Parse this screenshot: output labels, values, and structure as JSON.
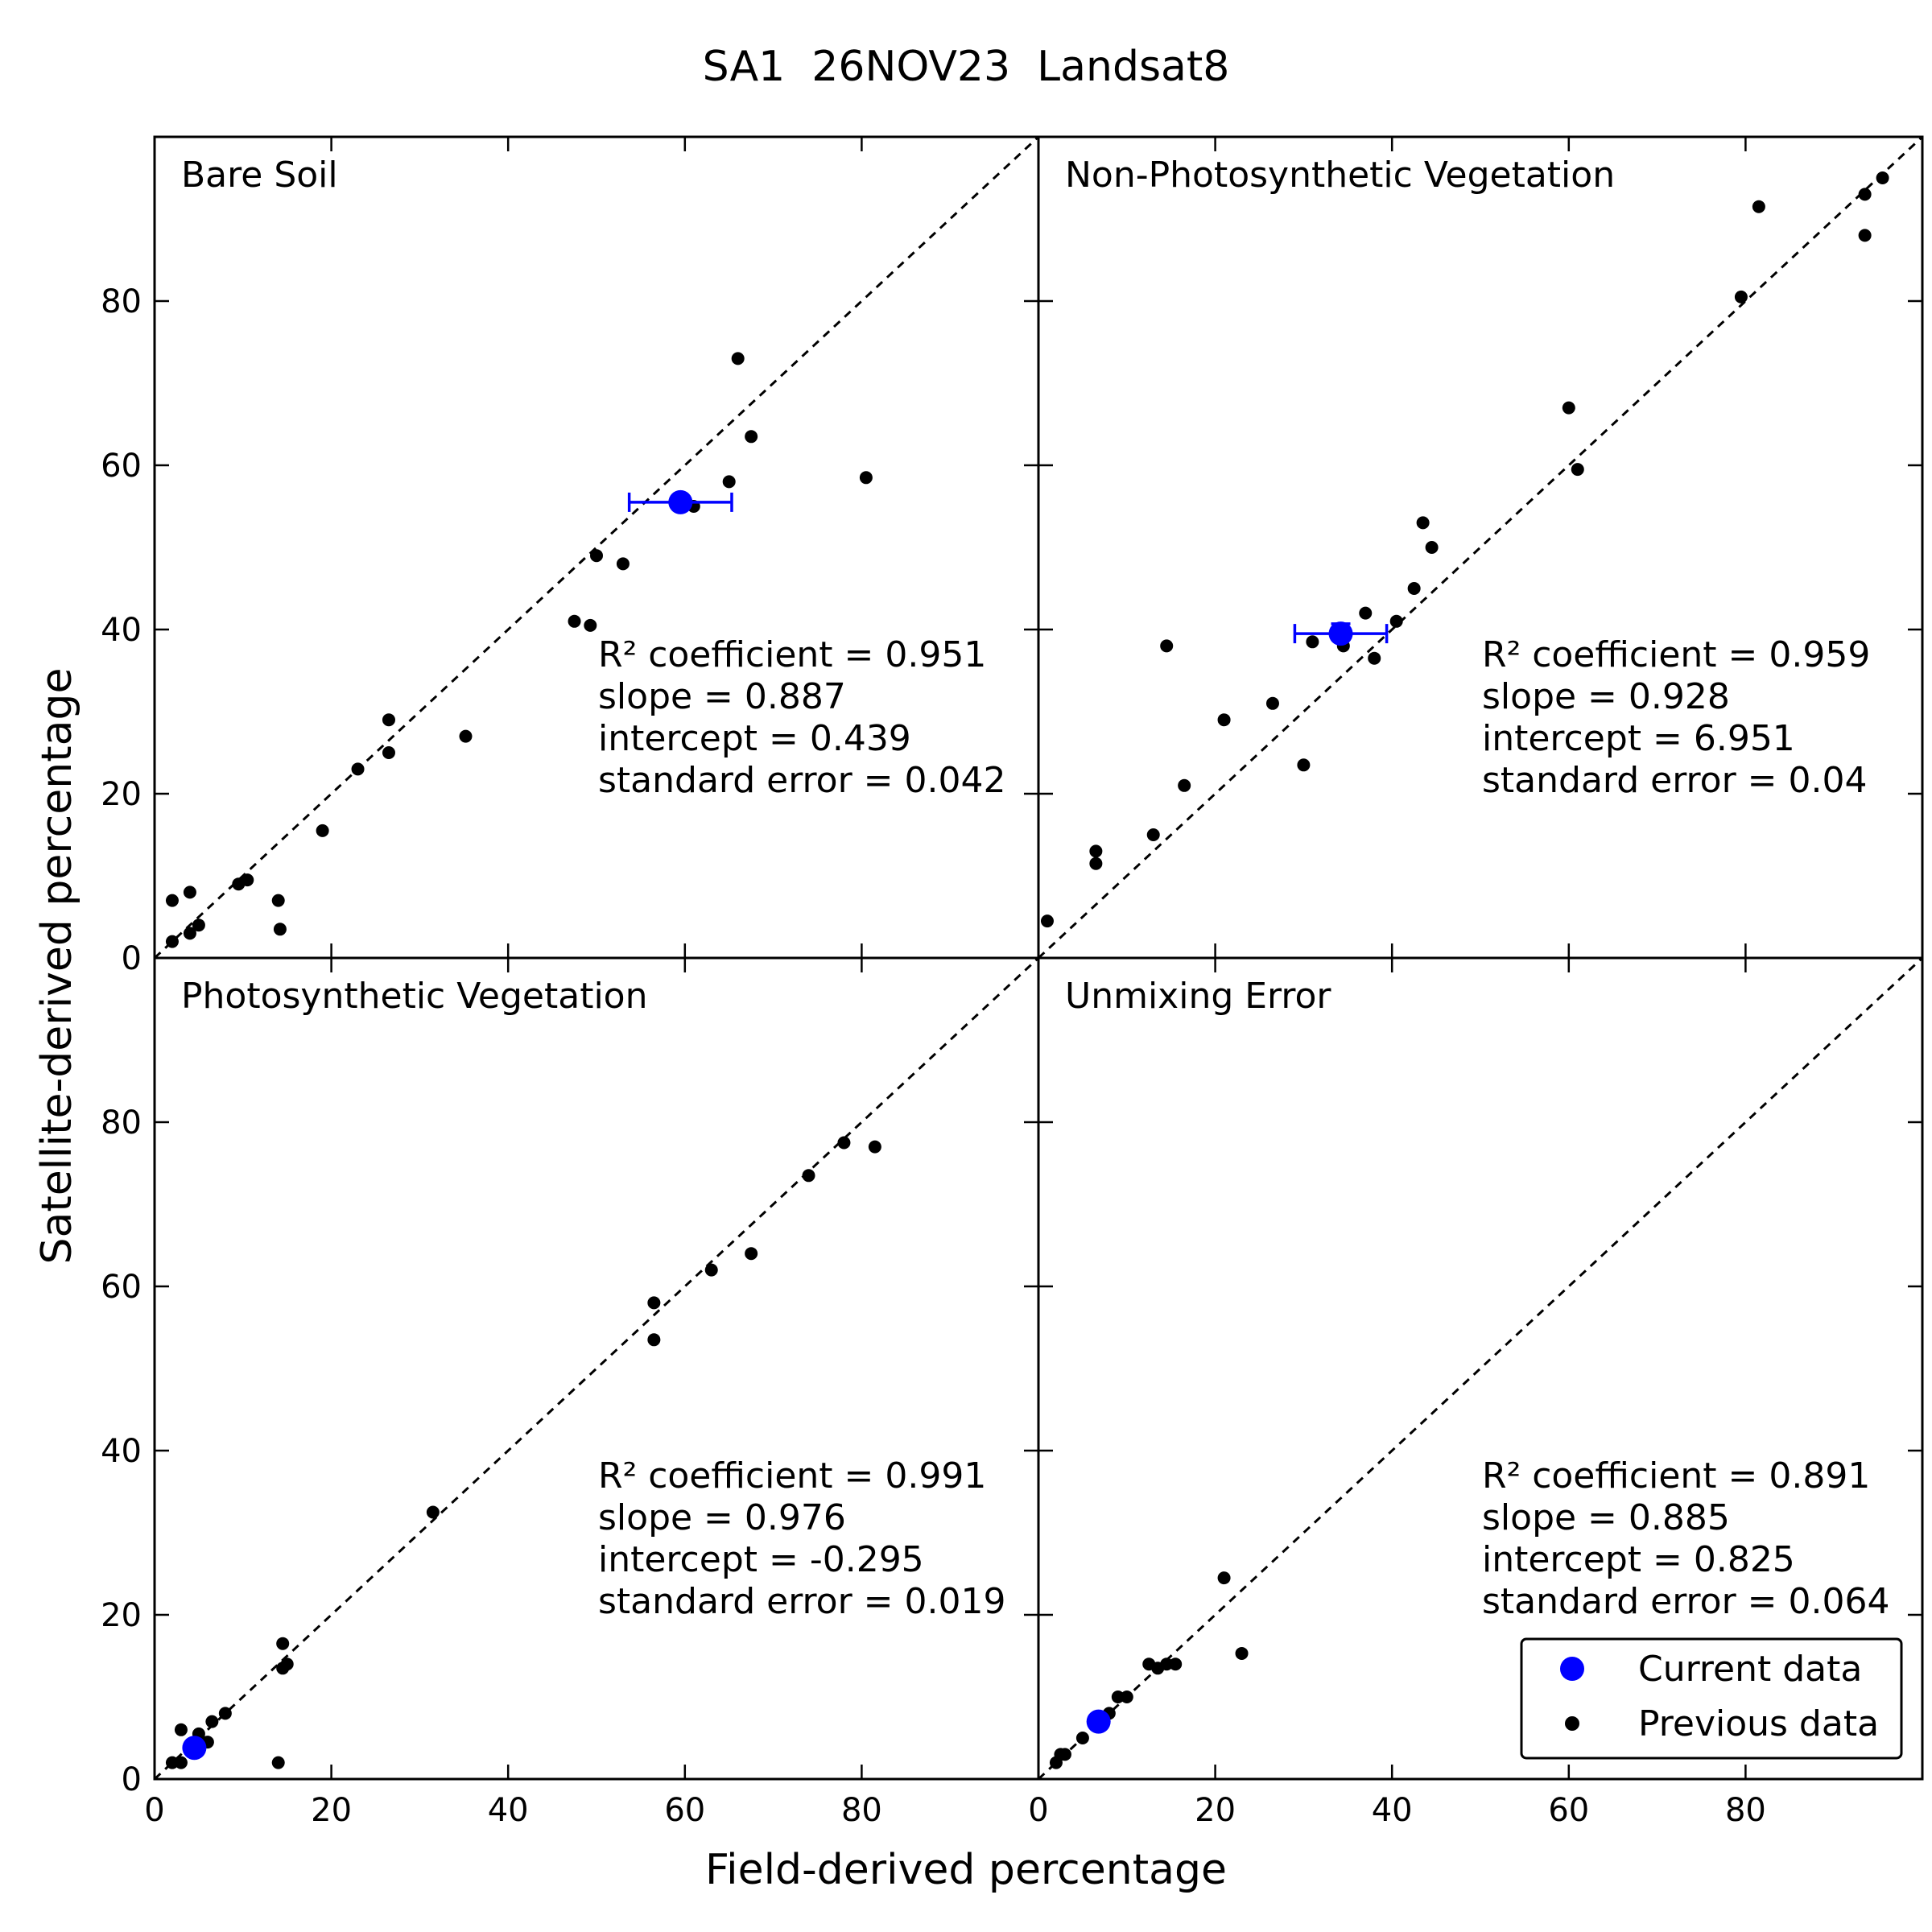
{
  "figure_title": "SA1  26NOV23  Landsat8",
  "xlabel": "Field-derived percentage",
  "ylabel": "Satellite-derived percentage",
  "legend": {
    "current": "Current data",
    "previous": "Previous data",
    "placement": "lower-right of Unmixing Error panel"
  },
  "colors": {
    "current": "#0000ff",
    "previous": "#000000",
    "reference_line": "#000000"
  },
  "chart_data": [
    {
      "type": "scatter",
      "title": "Bare Soil",
      "xlim": [
        0,
        100
      ],
      "ylim": [
        0,
        100
      ],
      "x_ticks": [
        0,
        20,
        40,
        60,
        80
      ],
      "y_ticks": [
        0,
        20,
        40,
        60,
        80
      ],
      "reference_line": "1:1",
      "stats": {
        "r2": "R² coefficient = 0.951",
        "slope": "slope = 0.887",
        "intercept": "intercept = 0.439",
        "stderr": "standard error = 0.042"
      },
      "series": [
        {
          "name": "Previous data",
          "points": [
            [
              2,
              2
            ],
            [
              2,
              7
            ],
            [
              4,
              3
            ],
            [
              4,
              8
            ],
            [
              5,
              4
            ],
            [
              9.5,
              9
            ],
            [
              10.5,
              9.5
            ],
            [
              14,
              7
            ],
            [
              14.2,
              3.5
            ],
            [
              19,
              15.5
            ],
            [
              23,
              23
            ],
            [
              26.5,
              29
            ],
            [
              26.5,
              25
            ],
            [
              35.2,
              27
            ],
            [
              47.5,
              41
            ],
            [
              49.3,
              40.5
            ],
            [
              50,
              49
            ],
            [
              53,
              48
            ],
            [
              61,
              55
            ],
            [
              65,
              58
            ],
            [
              66,
              73
            ],
            [
              67.5,
              63.5
            ],
            [
              80.5,
              58.5
            ]
          ]
        },
        {
          "name": "Current data",
          "points": [
            [
              59.5,
              55.5
            ]
          ],
          "xerr": [
            [
              5.8,
              5.8
            ]
          ]
        }
      ]
    },
    {
      "type": "scatter",
      "title": "Non-Photosynthetic Vegetation",
      "xlim": [
        0,
        100
      ],
      "ylim": [
        0,
        100
      ],
      "x_ticks": [
        0,
        20,
        40,
        60,
        80
      ],
      "y_ticks": [
        0,
        20,
        40,
        60,
        80
      ],
      "reference_line": "1:1",
      "stats": {
        "r2": "R² coefficient = 0.959",
        "slope": "slope = 0.928",
        "intercept": "intercept = 6.951",
        "stderr": "standard error = 0.04"
      },
      "series": [
        {
          "name": "Previous data",
          "points": [
            [
              1,
              4.5
            ],
            [
              6.5,
              11.5
            ],
            [
              6.5,
              13
            ],
            [
              13,
              15
            ],
            [
              14.5,
              38
            ],
            [
              16.5,
              21
            ],
            [
              21,
              29
            ],
            [
              26.5,
              31
            ],
            [
              30,
              23.5
            ],
            [
              31,
              38.5
            ],
            [
              34.5,
              38
            ],
            [
              37,
              42
            ],
            [
              38,
              36.5
            ],
            [
              40.5,
              41
            ],
            [
              42.5,
              45
            ],
            [
              43.5,
              53
            ],
            [
              44.5,
              50
            ],
            [
              60,
              67
            ],
            [
              61,
              59.5
            ],
            [
              79.5,
              80.5
            ],
            [
              81.5,
              91.5
            ],
            [
              93.5,
              88
            ],
            [
              93.5,
              93
            ],
            [
              95.5,
              95
            ]
          ]
        },
        {
          "name": "Current data",
          "points": [
            [
              34.2,
              39.5
            ]
          ],
          "xerr": [
            [
              5.2,
              5.2
            ]
          ],
          "yerr": [
            [
              1.2,
              1.2
            ]
          ]
        }
      ]
    },
    {
      "type": "scatter",
      "title": "Photosynthetic Vegetation",
      "xlim": [
        0,
        100
      ],
      "ylim": [
        0,
        100
      ],
      "x_ticks": [
        0,
        20,
        40,
        60,
        80
      ],
      "y_ticks": [
        0,
        20,
        40,
        60,
        80
      ],
      "reference_line": "1:1",
      "stats": {
        "r2": "R² coefficient = 0.991",
        "slope": "slope = 0.976",
        "intercept": "intercept = -0.295",
        "stderr": "standard error = 0.019"
      },
      "series": [
        {
          "name": "Previous data",
          "points": [
            [
              2,
              2
            ],
            [
              3,
              2
            ],
            [
              3,
              6
            ],
            [
              5,
              5.5
            ],
            [
              6,
              4.5
            ],
            [
              6.5,
              7
            ],
            [
              8,
              8
            ],
            [
              14,
              2
            ],
            [
              14.5,
              16.5
            ],
            [
              14.5,
              13.5
            ],
            [
              15,
              14
            ],
            [
              31.5,
              32.5
            ],
            [
              56.5,
              58
            ],
            [
              56.5,
              53.5
            ],
            [
              63,
              62
            ],
            [
              67.5,
              64
            ],
            [
              74,
              73.5
            ],
            [
              78,
              77.5
            ],
            [
              81.5,
              77
            ]
          ]
        },
        {
          "name": "Current data",
          "points": [
            [
              4.5,
              3.8
            ]
          ]
        }
      ]
    },
    {
      "type": "scatter",
      "title": "Unmixing Error",
      "xlim": [
        0,
        100
      ],
      "ylim": [
        0,
        100
      ],
      "x_ticks": [
        0,
        20,
        40,
        60,
        80
      ],
      "y_ticks": [
        0,
        20,
        40,
        60,
        80
      ],
      "reference_line": "1:1",
      "stats": {
        "r2": "R² coefficient = 0.891",
        "slope": "slope = 0.885",
        "intercept": "intercept = 0.825",
        "stderr": "standard error = 0.064"
      },
      "series": [
        {
          "name": "Previous data",
          "points": [
            [
              2,
              2
            ],
            [
              2.5,
              3
            ],
            [
              3,
              3
            ],
            [
              5,
              5
            ],
            [
              8,
              8
            ],
            [
              9,
              10
            ],
            [
              10,
              10
            ],
            [
              12.5,
              14
            ],
            [
              13.5,
              13.5
            ],
            [
              14.5,
              14
            ],
            [
              15.5,
              14
            ],
            [
              21,
              24.5
            ],
            [
              23,
              15.3
            ]
          ]
        },
        {
          "name": "Current data",
          "points": [
            [
              6.8,
              7
            ]
          ]
        }
      ]
    }
  ]
}
